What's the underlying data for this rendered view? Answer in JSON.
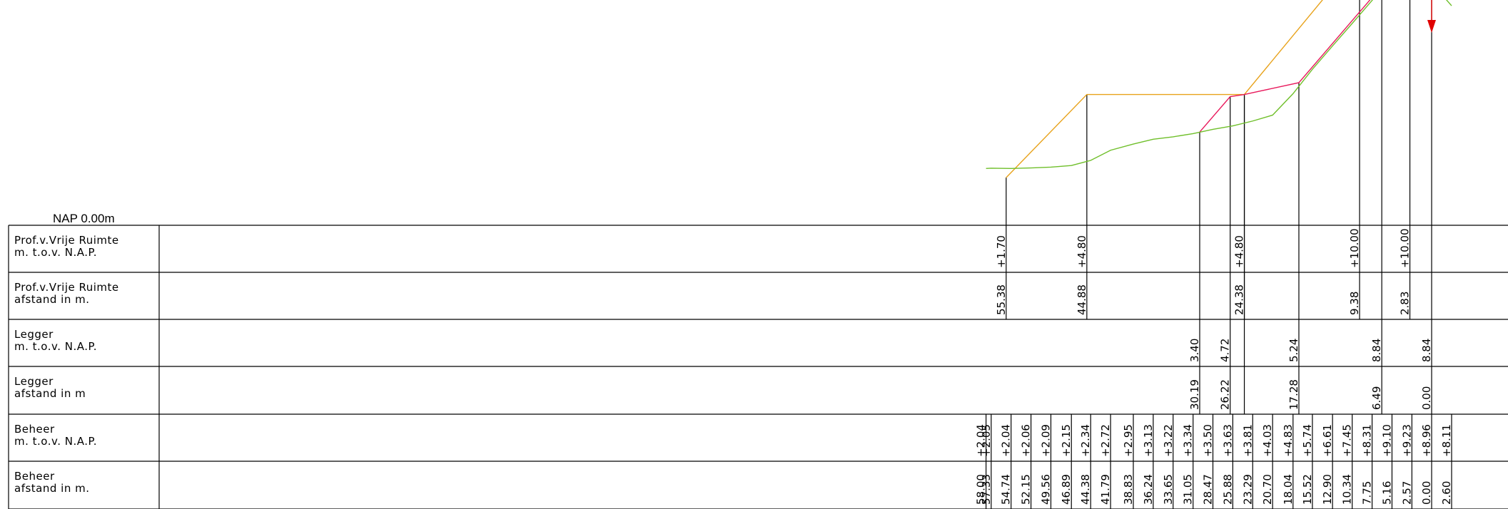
{
  "nap_label": "NAP 0.00m",
  "colors": {
    "lines": "#000000",
    "profile_free_space": "#e8a21a",
    "legger": "#e8185b",
    "terrain": "#6fbf2a",
    "marker": "#e00000"
  },
  "rows": [
    {
      "title1": "Prof.v.Vrije Ruimte",
      "title2": "m. t.o.v. N.A.P."
    },
    {
      "title1": "Prof.v.Vrije Ruimte",
      "title2": "afstand in m."
    },
    {
      "title1": "Legger",
      "title2": "m. t.o.v. N.A.P."
    },
    {
      "title1": "Legger",
      "title2": "afstand in m"
    },
    {
      "title1": "Beheer",
      "title2": "m. t.o.v. N.A.P."
    },
    {
      "title1": "Beheer",
      "title2": "afstand in m."
    }
  ],
  "pvr_nap": [
    "+1.70",
    "+4.80",
    "+4.80",
    "+10.00",
    "+10.00"
  ],
  "pvr_afstand": [
    "55.38",
    "44.88",
    "24.38",
    "9.38",
    "2.83"
  ],
  "legger_nap": [
    "3.40",
    "4.72",
    "5.24",
    "8.84",
    "8.84"
  ],
  "legger_afstand": [
    "30.19",
    "26.22",
    "17.28",
    "6.49",
    "0.00"
  ],
  "beheer_nap": [
    "+2.04",
    "+2.05",
    "+2.04",
    "+2.06",
    "+2.09",
    "+2.15",
    "+2.34",
    "+2.72",
    "+2.95",
    "+3.13",
    "+3.22",
    "+3.34",
    "+3.50",
    "+3.63",
    "+3.81",
    "+4.03",
    "+4.83",
    "+5.74",
    "+6.61",
    "+7.45",
    "+8.31",
    "+9.10",
    "+9.23",
    "+8.96",
    "+8.11"
  ],
  "beheer_afstand": [
    "58.00",
    "57.33",
    "54.74",
    "52.15",
    "49.56",
    "46.89",
    "44.38",
    "41.79",
    "38.83",
    "36.24",
    "33.65",
    "31.05",
    "28.47",
    "25.88",
    "23.29",
    "20.70",
    "18.04",
    "15.52",
    "12.90",
    "10.34",
    "7.75",
    "5.16",
    "2.57",
    "0.00",
    "2.60"
  ],
  "chart_data": {
    "type": "line",
    "xlabel": "",
    "ylabel": "",
    "series": [
      {
        "x": [
          55.38,
          44.88,
          24.38,
          9.38,
          2.83
        ],
        "y": [
          1.7,
          4.8,
          4.8,
          10.0,
          10.0
        ]
      },
      {
        "x": [
          30.19,
          26.22,
          24.38,
          17.28,
          6.49,
          0.0
        ],
        "y": [
          3.4,
          4.72,
          4.8,
          5.24,
          8.84,
          8.84
        ]
      },
      {
        "x": [
          58.0,
          57.33,
          54.74,
          52.15,
          49.56,
          46.89,
          44.38,
          41.79,
          38.83,
          36.24,
          33.65,
          31.05,
          28.47,
          25.88,
          23.29,
          20.7,
          18.04,
          15.52,
          12.9,
          10.34,
          7.75,
          5.16,
          2.57,
          0.0,
          -2.6
        ],
        "y": [
          2.04,
          2.05,
          2.04,
          2.06,
          2.09,
          2.15,
          2.34,
          2.72,
          2.95,
          3.13,
          3.22,
          3.34,
          3.5,
          3.63,
          3.81,
          4.03,
          4.83,
          5.74,
          6.61,
          7.45,
          8.31,
          9.1,
          9.23,
          8.96,
          8.11
        ]
      }
    ]
  }
}
